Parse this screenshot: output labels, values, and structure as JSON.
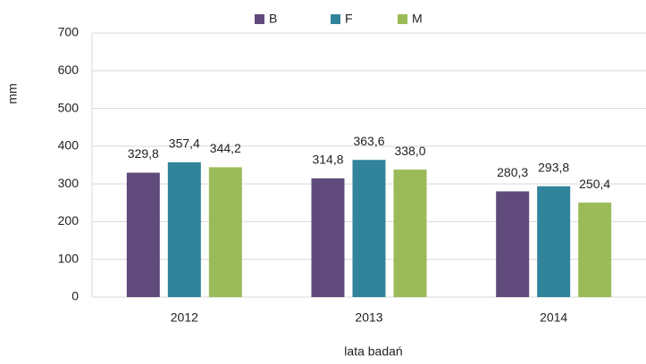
{
  "chart_data": {
    "type": "bar",
    "x_label": "lata badań",
    "y_label": "mm",
    "categories": [
      "2012",
      "2013",
      "2014"
    ],
    "series": [
      {
        "name": "B",
        "color": "#604a7b",
        "values": [
          329.8,
          314.8,
          280.3
        ],
        "value_labels": [
          "329,8",
          "314,8",
          "280,3"
        ]
      },
      {
        "name": "F",
        "color": "#31849b",
        "values": [
          357.4,
          363.6,
          293.8
        ],
        "value_labels": [
          "357,4",
          "363,6",
          "293,8"
        ]
      },
      {
        "name": "M",
        "color": "#9bbb59",
        "values": [
          344.2,
          338.0,
          250.4
        ],
        "value_labels": [
          "344,2",
          "338,0",
          "250,4"
        ]
      }
    ],
    "ylim": [
      0,
      700
    ],
    "yticks": [
      0,
      100,
      200,
      300,
      400,
      500,
      600,
      700
    ],
    "grid": true,
    "legend": "top"
  }
}
